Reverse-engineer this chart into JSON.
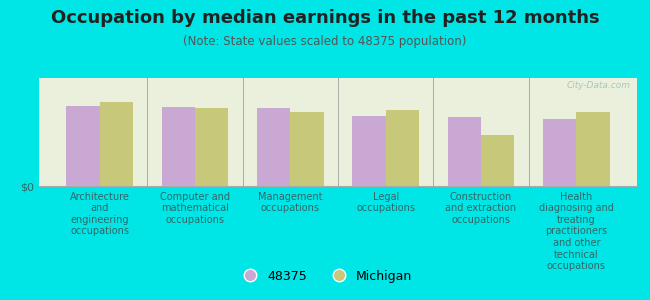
{
  "title": "Occupation by median earnings in the past 12 months",
  "subtitle": "(Note: State values scaled to 48375 population)",
  "categories": [
    "Architecture\nand\nengineering\noccupations",
    "Computer and\nmathematical\noccupations",
    "Management\noccupations",
    "Legal\noccupations",
    "Construction\nand extraction\noccupations",
    "Health\ndiagnosing and\ntreating\npractitioners\nand other\ntechnical\noccupations"
  ],
  "values_48375": [
    0.78,
    0.77,
    0.76,
    0.68,
    0.67,
    0.65
  ],
  "values_michigan": [
    0.82,
    0.76,
    0.72,
    0.74,
    0.5,
    0.72
  ],
  "bar_color_48375": "#c9a8d4",
  "bar_color_michigan": "#c8c87a",
  "background_color": "#00e5e5",
  "plot_bg_color": "#eaf0dc",
  "ylabel": "$0",
  "legend_labels": [
    "48375",
    "Michigan"
  ],
  "bar_width": 0.35,
  "ylim": [
    0,
    1.05
  ],
  "title_fontsize": 13,
  "subtitle_fontsize": 8.5,
  "axis_label_fontsize": 7,
  "watermark": "City-Data.com"
}
